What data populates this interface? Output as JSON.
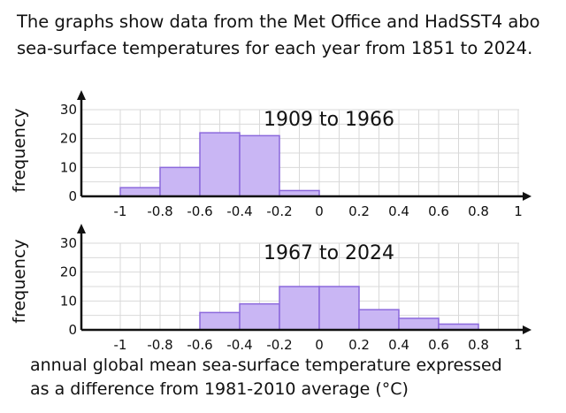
{
  "intro": {
    "line1": "The graphs show data from the Met Office and HadSST4 abo",
    "line2": "sea-surface temperatures for each year from 1851 to 2024."
  },
  "xlabel": {
    "line1": "annual global mean sea-surface temperature expressed",
    "line2": "as a difference from 1981-2010 average (°C)"
  },
  "colors": {
    "bar_fill": "#c9b6f4",
    "bar_stroke": "#8b68dc",
    "grid": "#d9d9d9",
    "axis": "#111111"
  },
  "chart_data": [
    {
      "type": "bar",
      "title": "1909 to 1966",
      "ylabel": "frequency",
      "xlabel": "annual global mean sea-surface temperature expressed as a difference from 1981-2010 average (°C)",
      "x_ticks": [
        "-1",
        "-0.8",
        "-0.6",
        "-0.4",
        "-0.2",
        "0",
        "0.2",
        "0.4",
        "0.6",
        "0.8",
        "1"
      ],
      "y_ticks": [
        "0",
        "10",
        "20",
        "30"
      ],
      "xlim": [
        -1,
        1
      ],
      "ylim": [
        0,
        30
      ],
      "bins": [
        {
          "from": -1.0,
          "to": -0.8,
          "frequency": 3
        },
        {
          "from": -0.8,
          "to": -0.6,
          "frequency": 10
        },
        {
          "from": -0.6,
          "to": -0.4,
          "frequency": 22
        },
        {
          "from": -0.4,
          "to": -0.2,
          "frequency": 21
        },
        {
          "from": -0.2,
          "to": 0.0,
          "frequency": 2
        }
      ],
      "grid": true
    },
    {
      "type": "bar",
      "title": "1967 to 2024",
      "ylabel": "frequency",
      "xlabel": "annual global mean sea-surface temperature expressed as a difference from 1981-2010 average (°C)",
      "x_ticks": [
        "-1",
        "-0.8",
        "-0.6",
        "-0.4",
        "-0.2",
        "0",
        "0.2",
        "0.4",
        "0.6",
        "0.8",
        "1"
      ],
      "y_ticks": [
        "0",
        "10",
        "20",
        "30"
      ],
      "xlim": [
        -1,
        1
      ],
      "ylim": [
        0,
        30
      ],
      "bins": [
        {
          "from": -0.6,
          "to": -0.4,
          "frequency": 6
        },
        {
          "from": -0.4,
          "to": -0.2,
          "frequency": 9
        },
        {
          "from": -0.2,
          "to": 0.0,
          "frequency": 15
        },
        {
          "from": 0.0,
          "to": 0.2,
          "frequency": 15
        },
        {
          "from": 0.2,
          "to": 0.4,
          "frequency": 7
        },
        {
          "from": 0.4,
          "to": 0.6,
          "frequency": 4
        },
        {
          "from": 0.6,
          "to": 0.8,
          "frequency": 2
        }
      ],
      "grid": true
    }
  ]
}
